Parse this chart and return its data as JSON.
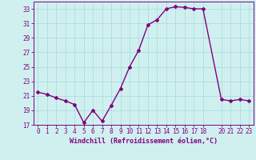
{
  "x": [
    0,
    1,
    2,
    3,
    4,
    5,
    6,
    7,
    8,
    9,
    10,
    11,
    12,
    13,
    14,
    15,
    16,
    17,
    18,
    20,
    21,
    22,
    23
  ],
  "y": [
    21.5,
    21.2,
    20.7,
    20.3,
    19.8,
    17.3,
    19.0,
    17.5,
    19.7,
    22.0,
    25.0,
    27.3,
    30.8,
    31.5,
    33.0,
    33.3,
    33.2,
    33.0,
    33.0,
    20.5,
    20.3,
    20.5,
    20.3
  ],
  "line_color": "#800080",
  "marker": "D",
  "marker_size": 2,
  "line_width": 1.0,
  "bg_color": "#d0f0f0",
  "grid_color": "#aadddd",
  "xlabel": "Windchill (Refroidissement éolien,°C)",
  "xlabel_color": "#800080",
  "tick_color": "#800080",
  "ylim": [
    17,
    34
  ],
  "yticks": [
    17,
    19,
    21,
    23,
    25,
    27,
    29,
    31,
    33
  ],
  "xticks": [
    0,
    1,
    2,
    3,
    4,
    5,
    6,
    7,
    8,
    9,
    10,
    11,
    12,
    13,
    14,
    15,
    16,
    17,
    18,
    20,
    21,
    22,
    23
  ],
  "xlim": [
    -0.5,
    23.5
  ],
  "tick_fontsize": 5.5,
  "xlabel_fontsize": 6.0
}
